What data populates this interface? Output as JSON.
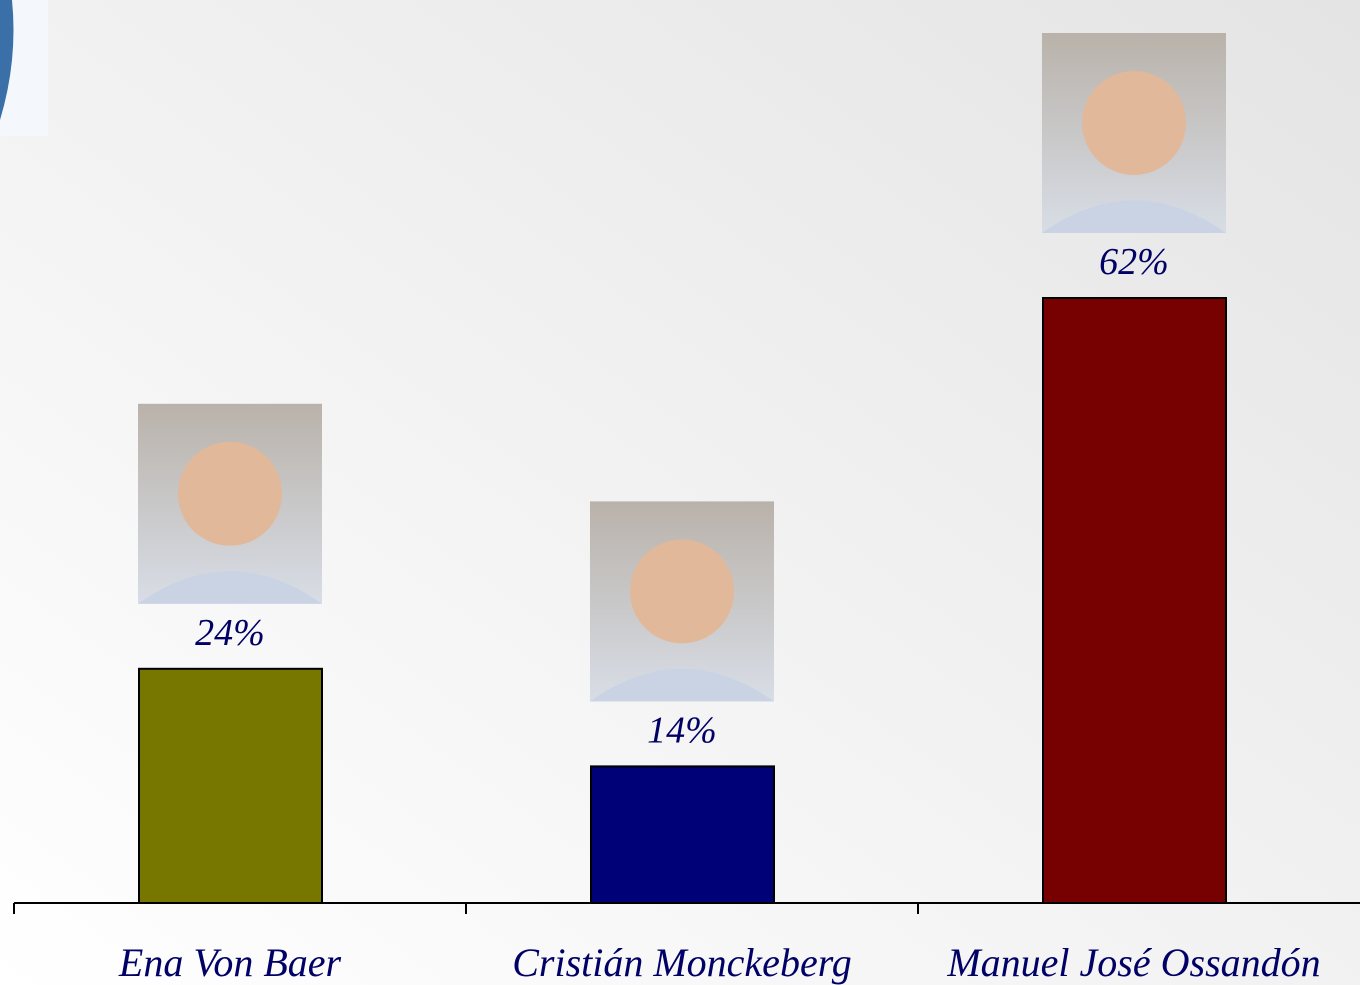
{
  "chart_data": {
    "type": "bar",
    "categories": [
      "Ena Von Baer",
      "Cristián Monckeberg",
      "Manuel José Ossandón"
    ],
    "values": [
      24,
      14,
      62
    ],
    "value_labels": [
      "24%",
      "14%",
      "62%"
    ],
    "colors": [
      "#777700",
      "#000077",
      "#770000"
    ]
  }
}
